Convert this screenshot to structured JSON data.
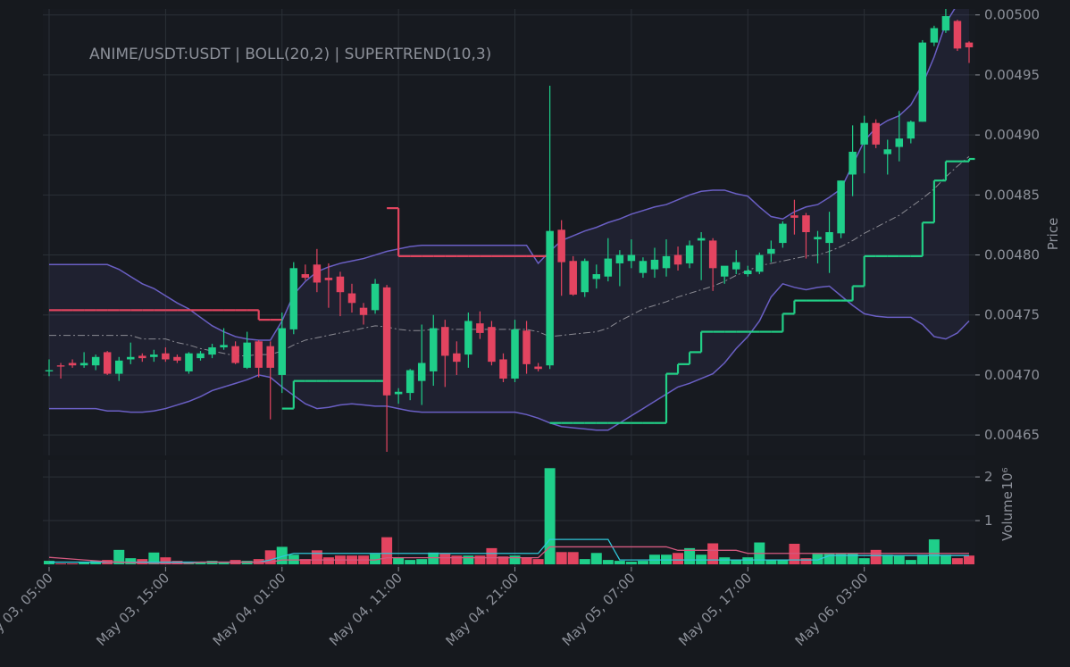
{
  "chart_data": {
    "type": "candlestick",
    "title": "ANIME/USDT:USDT | BOLL(20,2) | SUPERTREND(10,3)",
    "ylabel": "Price",
    "volume_label": "Volume",
    "volume_scale": "10⁶",
    "categories": [
      "May 03, 05:00",
      null,
      null,
      null,
      null,
      null,
      null,
      null,
      null,
      null,
      "May 03, 15:00",
      null,
      null,
      null,
      null,
      null,
      null,
      null,
      null,
      null,
      "May 04, 01:00",
      null,
      null,
      null,
      null,
      null,
      null,
      null,
      null,
      null,
      "May 04, 11:00",
      null,
      null,
      null,
      null,
      null,
      null,
      null,
      null,
      null,
      "May 04, 21:00",
      null,
      null,
      null,
      null,
      null,
      null,
      null,
      null,
      null,
      "May 05, 07:00",
      null,
      null,
      null,
      null,
      null,
      null,
      null,
      null,
      null,
      "May 05, 17:00",
      null,
      null,
      null,
      null,
      null,
      null,
      null,
      null,
      null,
      "May 06, 03:00",
      null,
      null,
      null,
      null,
      null,
      null,
      null,
      null,
      null
    ],
    "open": [
      0.004703,
      0.004708,
      0.00471,
      0.004708,
      0.004708,
      0.004719,
      0.004701,
      0.004713,
      0.004716,
      0.004715,
      0.004718,
      0.004715,
      0.004703,
      0.004714,
      0.004717,
      0.004723,
      0.004724,
      0.004706,
      0.004728,
      0.004724,
      0.0047,
      0.004738,
      0.004784,
      0.004792,
      0.004781,
      0.004782,
      0.004768,
      0.004756,
      0.004754,
      0.004773,
      0.004684,
      0.004685,
      0.004695,
      0.004703,
      0.00474,
      0.004718,
      0.004717,
      0.004743,
      0.00474,
      0.004713,
      0.004697,
      0.004737,
      0.004707,
      0.004708,
      0.004821,
      0.004795,
      0.004769,
      0.00478,
      0.004782,
      0.004793,
      0.004795,
      0.004785,
      0.004788,
      0.004789,
      0.0048,
      0.004793,
      0.004812,
      0.004812,
      0.004782,
      0.004788,
      0.004784,
      0.004786,
      0.004801,
      0.00481,
      0.004833,
      0.004833,
      0.004813,
      0.00481,
      0.004818,
      0.004867,
      0.004892,
      0.00491,
      0.004884,
      0.00489,
      0.004897,
      0.004911,
      0.004977,
      0.004987,
      0.004995,
      0.004977
    ],
    "high": [
      0.004713,
      0.00471,
      0.004713,
      0.004719,
      0.004717,
      0.00472,
      0.004715,
      0.004727,
      0.004718,
      0.004721,
      0.004723,
      0.004717,
      0.004719,
      0.00472,
      0.004726,
      0.004739,
      0.004728,
      0.004736,
      0.004729,
      0.004728,
      0.004752,
      0.004794,
      0.004792,
      0.004805,
      0.004793,
      0.004786,
      0.004776,
      0.00476,
      0.00478,
      0.004775,
      0.004689,
      0.004705,
      0.004742,
      0.00475,
      0.004746,
      0.004728,
      0.004752,
      0.004753,
      0.004745,
      0.004718,
      0.004746,
      0.004745,
      0.00471,
      0.004941,
      0.004829,
      0.004799,
      0.004797,
      0.004792,
      0.004814,
      0.004804,
      0.004813,
      0.004798,
      0.004806,
      0.004813,
      0.004807,
      0.004812,
      0.004819,
      0.004814,
      0.00479,
      0.004804,
      0.004791,
      0.004802,
      0.004812,
      0.004828,
      0.004846,
      0.004835,
      0.00482,
      0.004836,
      0.004862,
      0.004908,
      0.004916,
      0.004913,
      0.004896,
      0.00492,
      0.004912,
      0.004979,
      0.004991,
      0.005005,
      0.004996,
      0.004978
    ],
    "low": [
      0.004699,
      0.004697,
      0.004706,
      0.004706,
      0.004704,
      0.0047,
      0.004695,
      0.004709,
      0.004711,
      0.004711,
      0.004711,
      0.00471,
      0.004701,
      0.004712,
      0.004714,
      0.004721,
      0.004709,
      0.004705,
      0.004698,
      0.004663,
      0.004685,
      0.004734,
      0.004779,
      0.004769,
      0.004756,
      0.004749,
      0.004752,
      0.004742,
      0.004751,
      0.004636,
      0.004676,
      0.004679,
      0.004675,
      0.004691,
      0.00469,
      0.0047,
      0.004706,
      0.00473,
      0.004708,
      0.004694,
      0.004694,
      0.004701,
      0.004703,
      0.004705,
      0.004766,
      0.004766,
      0.004765,
      0.004772,
      0.004778,
      0.004774,
      0.004789,
      0.004781,
      0.004781,
      0.004782,
      0.004787,
      0.004789,
      0.004779,
      0.00477,
      0.004776,
      0.004784,
      0.004782,
      0.004784,
      0.004794,
      0.004806,
      0.004817,
      0.004797,
      0.004793,
      0.004785,
      0.004814,
      0.004849,
      0.004868,
      0.004889,
      0.004867,
      0.004878,
      0.004893,
      0.004911,
      0.004974,
      0.004985,
      0.00497,
      0.00496
    ],
    "close": [
      0.004704,
      0.004707,
      0.004708,
      0.00471,
      0.004715,
      0.004701,
      0.004712,
      0.004715,
      0.004714,
      0.004717,
      0.004713,
      0.004712,
      0.004718,
      0.004718,
      0.004723,
      0.004725,
      0.00471,
      0.004727,
      0.004706,
      0.004706,
      0.004739,
      0.004789,
      0.004781,
      0.004777,
      0.004779,
      0.004769,
      0.00476,
      0.00475,
      0.004776,
      0.004683,
      0.004686,
      0.004704,
      0.00471,
      0.004739,
      0.004716,
      0.004711,
      0.004745,
      0.004735,
      0.004711,
      0.004697,
      0.004738,
      0.004709,
      0.004705,
      0.00482,
      0.004794,
      0.004767,
      0.004795,
      0.004784,
      0.004797,
      0.0048,
      0.0048,
      0.004795,
      0.004796,
      0.004799,
      0.004792,
      0.004808,
      0.004814,
      0.004789,
      0.004791,
      0.004794,
      0.004787,
      0.0048,
      0.004805,
      0.004826,
      0.004831,
      0.004819,
      0.004815,
      0.004819,
      0.004862,
      0.004886,
      0.00491,
      0.004892,
      0.004888,
      0.004897,
      0.004911,
      0.004977,
      0.004989,
      0.004999,
      0.004972,
      0.004973
    ],
    "volume": [
      0.08,
      0.02,
      0.02,
      0.06,
      0.08,
      0.1,
      0.33,
      0.14,
      0.12,
      0.27,
      0.16,
      0.08,
      0.06,
      0.04,
      0.08,
      0.06,
      0.1,
      0.08,
      0.12,
      0.32,
      0.4,
      0.22,
      0.12,
      0.32,
      0.16,
      0.2,
      0.2,
      0.2,
      0.24,
      0.62,
      0.16,
      0.1,
      0.12,
      0.27,
      0.24,
      0.2,
      0.2,
      0.2,
      0.37,
      0.18,
      0.2,
      0.16,
      0.12,
      2.2,
      0.28,
      0.28,
      0.12,
      0.26,
      0.1,
      0.08,
      0.06,
      0.08,
      0.22,
      0.22,
      0.26,
      0.37,
      0.22,
      0.48,
      0.16,
      0.1,
      0.16,
      0.5,
      0.1,
      0.1,
      0.47,
      0.14,
      0.24,
      0.24,
      0.24,
      0.25,
      0.14,
      0.33,
      0.22,
      0.2,
      0.1,
      0.22,
      0.57,
      0.22,
      0.14,
      0.2
    ],
    "bollinger": {
      "color": "#6a5fc4",
      "middle_color": "#8a8a92",
      "upper": [
        0.004792,
        0.004792,
        0.004792,
        0.004792,
        0.004792,
        0.004792,
        0.004788,
        0.004782,
        0.004776,
        0.004772,
        0.004766,
        0.00476,
        0.004755,
        0.004748,
        0.004741,
        0.004736,
        0.004732,
        0.00473,
        0.004729,
        0.004729,
        0.004745,
        0.004767,
        0.004778,
        0.004786,
        0.00479,
        0.004793,
        0.004795,
        0.004797,
        0.0048,
        0.004803,
        0.004805,
        0.004807,
        0.004808,
        0.004808,
        0.004808,
        0.004808,
        0.004808,
        0.004808,
        0.004808,
        0.004808,
        0.004808,
        0.004808,
        0.004793,
        0.004803,
        0.004812,
        0.004816,
        0.00482,
        0.004823,
        0.004827,
        0.00483,
        0.004834,
        0.004837,
        0.00484,
        0.004842,
        0.004846,
        0.00485,
        0.004853,
        0.004854,
        0.004854,
        0.004851,
        0.004849,
        0.00484,
        0.004832,
        0.00483,
        0.004836,
        0.00484,
        0.004842,
        0.004848,
        0.004855,
        0.004875,
        0.004895,
        0.004906,
        0.004912,
        0.004916,
        0.004925,
        0.004942,
        0.004965,
        0.004993,
        0.005009,
        0.005012
      ],
      "middle": [
        0.004733,
        0.004733,
        0.004733,
        0.004733,
        0.004733,
        0.004733,
        0.004733,
        0.004733,
        0.00473,
        0.00473,
        0.00473,
        0.004727,
        0.004725,
        0.004722,
        0.00472,
        0.004718,
        0.004716,
        0.004716,
        0.004717,
        0.004717,
        0.00472,
        0.004725,
        0.004729,
        0.004731,
        0.004733,
        0.004735,
        0.004737,
        0.004739,
        0.004741,
        0.00474,
        0.004738,
        0.004737,
        0.004737,
        0.004738,
        0.004738,
        0.004738,
        0.004738,
        0.004738,
        0.004738,
        0.004738,
        0.004738,
        0.004738,
        0.004736,
        0.004732,
        0.004733,
        0.004734,
        0.004735,
        0.004736,
        0.004739,
        0.004745,
        0.00475,
        0.004755,
        0.004758,
        0.004761,
        0.004765,
        0.004768,
        0.004771,
        0.004774,
        0.004778,
        0.004783,
        0.004787,
        0.004791,
        0.004793,
        0.004795,
        0.004797,
        0.004799,
        0.0048,
        0.004803,
        0.004807,
        0.004812,
        0.004818,
        0.004823,
        0.004828,
        0.004833,
        0.00484,
        0.004847,
        0.004855,
        0.004865,
        0.004874,
        0.004882
      ],
      "lower": [
        0.004672,
        0.004672,
        0.004672,
        0.004672,
        0.004672,
        0.00467,
        0.00467,
        0.004669,
        0.004669,
        0.00467,
        0.004672,
        0.004675,
        0.004678,
        0.004682,
        0.004687,
        0.00469,
        0.004693,
        0.004696,
        0.0047,
        0.004698,
        0.00469,
        0.004683,
        0.004676,
        0.004672,
        0.004673,
        0.004675,
        0.004676,
        0.004675,
        0.004674,
        0.004674,
        0.004672,
        0.00467,
        0.004669,
        0.004669,
        0.004669,
        0.004669,
        0.004669,
        0.004669,
        0.004669,
        0.004669,
        0.004669,
        0.004667,
        0.004664,
        0.00466,
        0.004657,
        0.004656,
        0.004655,
        0.004654,
        0.004654,
        0.00466,
        0.004666,
        0.004672,
        0.004678,
        0.004684,
        0.00469,
        0.004693,
        0.004697,
        0.004701,
        0.00471,
        0.004722,
        0.004732,
        0.004745,
        0.004765,
        0.004776,
        0.004773,
        0.004771,
        0.004773,
        0.004774,
        0.004766,
        0.004758,
        0.004751,
        0.004749,
        0.004748,
        0.004748,
        0.004748,
        0.004742,
        0.004732,
        0.00473,
        0.004735,
        0.004745
      ]
    },
    "supertrend": {
      "up_color": "#22cf86",
      "down_color": "#e2455f",
      "up": [
        null,
        null,
        null,
        null,
        null,
        null,
        null,
        null,
        null,
        null,
        null,
        null,
        null,
        null,
        null,
        null,
        null,
        null,
        null,
        null,
        0.004672,
        0.004695,
        0.004695,
        0.004695,
        0.004695,
        0.004695,
        0.004695,
        0.004695,
        0.004695,
        null,
        null,
        null,
        null,
        null,
        null,
        null,
        null,
        null,
        null,
        null,
        null,
        null,
        null,
        0.00466,
        0.00466,
        0.00466,
        0.00466,
        0.00466,
        0.00466,
        0.00466,
        0.00466,
        0.00466,
        0.00466,
        0.004701,
        0.004709,
        0.004719,
        0.004736,
        0.004736,
        0.004736,
        0.004736,
        0.004736,
        0.004736,
        0.004736,
        0.004751,
        0.004762,
        0.004762,
        0.004762,
        0.004762,
        0.004762,
        0.004774,
        0.004799,
        0.004799,
        0.004799,
        0.004799,
        0.004799,
        0.004827,
        0.004862,
        0.004878,
        0.004878,
        0.00488
      ],
      "down": [
        0.004754,
        0.004754,
        0.004754,
        0.004754,
        0.004754,
        0.004754,
        0.004754,
        0.004754,
        0.004754,
        0.004754,
        0.004754,
        0.004754,
        0.004754,
        0.004754,
        0.004754,
        0.004754,
        0.004754,
        0.004754,
        0.004746,
        0.004746,
        null,
        null,
        null,
        null,
        null,
        null,
        null,
        null,
        null,
        0.004839,
        0.004799,
        0.004799,
        0.004799,
        0.004799,
        0.004799,
        0.004799,
        0.004799,
        0.004799,
        0.004799,
        0.004799,
        0.004799,
        0.004799,
        0.004799,
        null,
        null,
        null,
        null,
        null,
        null,
        null,
        null,
        null,
        null,
        null,
        null,
        null,
        null,
        null,
        null,
        null,
        null,
        null,
        null,
        null,
        null,
        null,
        null,
        null,
        null,
        null,
        null,
        null,
        null,
        null,
        null,
        null,
        null,
        null,
        null,
        null
      ]
    },
    "volume_ma": [
      {
        "color": "#2fc6d8",
        "values": [
          0.05,
          0.05,
          0.05,
          0.05,
          0.05,
          0.05,
          0.05,
          0.05,
          0.05,
          0.05,
          0.05,
          0.05,
          0.05,
          0.05,
          0.05,
          0.05,
          0.05,
          0.05,
          0.05,
          0.1,
          0.18,
          0.25,
          0.25,
          0.25,
          0.25,
          0.25,
          0.25,
          0.25,
          0.25,
          0.25,
          0.25,
          0.25,
          0.25,
          0.25,
          0.25,
          0.25,
          0.25,
          0.25,
          0.25,
          0.25,
          0.25,
          0.25,
          0.25,
          0.57,
          0.57,
          0.57,
          0.57,
          0.57,
          0.57,
          0.1,
          0.1,
          0.1,
          0.1,
          0.1,
          0.1,
          0.1,
          0.1,
          0.1,
          0.1,
          0.1,
          0.1,
          0.1,
          0.1,
          0.1,
          0.1,
          0.1,
          0.1,
          0.2,
          0.2,
          0.2,
          0.2,
          0.2,
          0.2,
          0.2,
          0.2,
          0.2,
          0.2,
          0.2,
          0.2,
          0.2
        ]
      },
      {
        "color": "#d3597f",
        "values": [
          0.16,
          0.14,
          0.12,
          0.1,
          0.08,
          0.06,
          0.05,
          0.04,
          0.03,
          0.02,
          0.02,
          0.02,
          0.02,
          0.05,
          0.05,
          0.05,
          0.05,
          0.05,
          0.05,
          0.05,
          0.1,
          0.1,
          0.1,
          0.1,
          0.1,
          0.1,
          0.1,
          0.1,
          0.1,
          0.15,
          0.15,
          0.15,
          0.15,
          0.15,
          0.15,
          0.15,
          0.15,
          0.15,
          0.15,
          0.15,
          0.15,
          0.15,
          0.15,
          0.4,
          0.4,
          0.4,
          0.4,
          0.4,
          0.4,
          0.4,
          0.4,
          0.4,
          0.4,
          0.4,
          0.32,
          0.32,
          0.32,
          0.32,
          0.32,
          0.32,
          0.25,
          0.25,
          0.25,
          0.25,
          0.25,
          0.25,
          0.25,
          0.25,
          0.25,
          0.25,
          0.25,
          0.25,
          0.25,
          0.25,
          0.25,
          0.25,
          0.25,
          0.25,
          0.25,
          0.25
        ]
      }
    ],
    "up_color": "#1fcf8a",
    "down_color": "#e34460",
    "ylim": [
      0.004633,
      0.005005
    ],
    "yticks": [
      0.00465,
      {
        "value": 0.0047,
        "label": "0.00470"
      },
      0.00475,
      {
        "value": 0.0048,
        "label": "0.00480"
      },
      0.00485,
      {
        "value": 0.0049,
        "label": "0.00490"
      },
      0.00495,
      {
        "value": 0.005,
        "label": "0.00500"
      }
    ],
    "volume_ylim": [
      0,
      2.39
    ],
    "volume_yticks": [
      1,
      2
    ],
    "grid": true
  }
}
